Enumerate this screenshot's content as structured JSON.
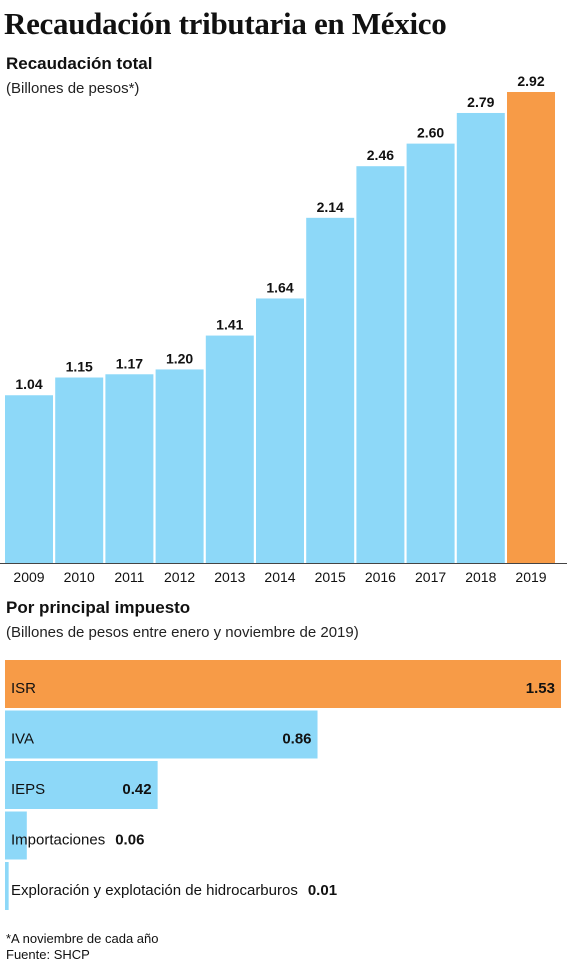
{
  "header": {
    "title": "Recaudación tributaria en México"
  },
  "colors": {
    "bar": "#8dd8f8",
    "highlight": "#f79b47",
    "text": "#111111",
    "baseline": "#444444"
  },
  "chart_data": [
    {
      "type": "bar",
      "title": "Recaudación total",
      "subtitle": "(Billones de pesos*)",
      "categories": [
        "2009",
        "2010",
        "2011",
        "2012",
        "2013",
        "2014",
        "2015",
        "2016",
        "2017",
        "2018",
        "2019"
      ],
      "values": [
        1.04,
        1.15,
        1.17,
        1.2,
        1.41,
        1.64,
        2.14,
        2.46,
        2.6,
        2.79,
        2.92
      ],
      "value_labels": [
        "1.04",
        "1.15",
        "1.17",
        "1.20",
        "1.41",
        "1.64",
        "2.14",
        "2.46",
        "2.60",
        "2.79",
        "2.92"
      ],
      "highlight_index": 10,
      "ylim": [
        0,
        2.92
      ]
    },
    {
      "type": "bar",
      "orientation": "horizontal",
      "title": "Por principal impuesto",
      "subtitle": "(Billones de pesos entre enero y noviembre de 2019)",
      "categories": [
        "ISR",
        "IVA",
        "IEPS",
        "Importaciones",
        "Exploración y explotación de hidrocarburos"
      ],
      "values": [
        1.53,
        0.86,
        0.42,
        0.06,
        0.01
      ],
      "value_labels": [
        "1.53",
        "0.86",
        "0.42",
        "0.06",
        "0.01"
      ],
      "highlight_index": 0,
      "xlim": [
        0,
        1.53
      ]
    }
  ],
  "footnotes": {
    "note": "*A noviembre de cada año",
    "source": "Fuente: SHCP"
  }
}
